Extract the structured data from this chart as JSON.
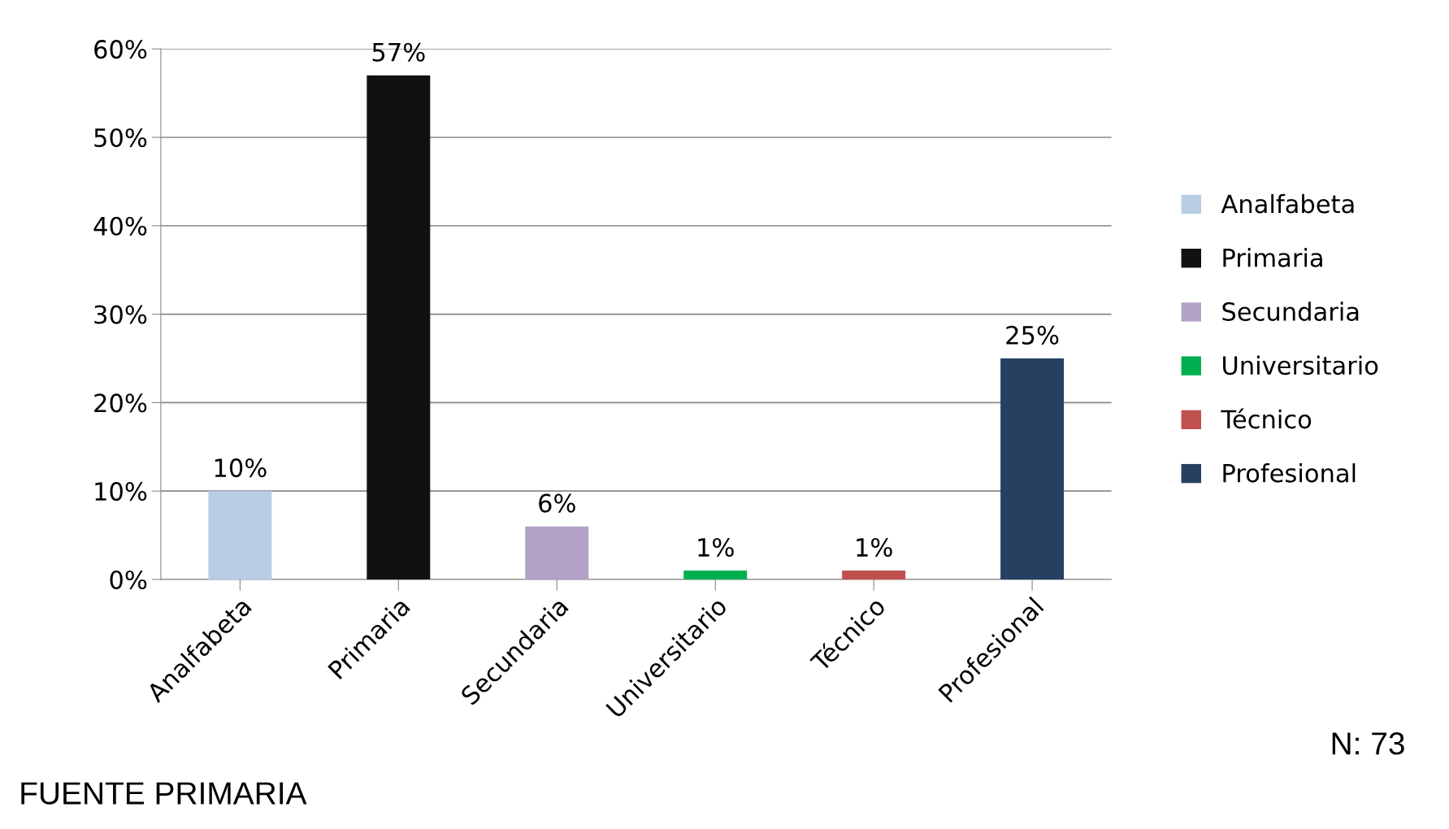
{
  "chart_data": {
    "type": "bar",
    "categories": [
      "Analfabeta",
      "Primaria",
      "Secundaria",
      "Universitario",
      "Técnico",
      "Profesional"
    ],
    "series": [
      {
        "name": "Analfabeta",
        "color": "#b9cde5",
        "values": [
          10,
          null,
          null,
          null,
          null,
          null
        ],
        "value_labels": [
          "10%",
          null,
          null,
          null,
          null,
          null
        ]
      },
      {
        "name": "Primaria",
        "color": "#111111",
        "values": [
          null,
          57,
          null,
          null,
          null,
          null
        ],
        "value_labels": [
          null,
          "57%",
          null,
          null,
          null,
          null
        ]
      },
      {
        "name": "Secundaria",
        "color": "#b3a2c7",
        "values": [
          null,
          null,
          6,
          null,
          null,
          null
        ],
        "value_labels": [
          null,
          null,
          "6%",
          null,
          null,
          null
        ]
      },
      {
        "name": "Universitario",
        "color": "#00b050",
        "values": [
          null,
          null,
          null,
          1,
          null,
          null
        ],
        "value_labels": [
          null,
          null,
          null,
          "1%",
          null,
          null
        ]
      },
      {
        "name": "Técnico",
        "color": "#c0504d",
        "values": [
          null,
          null,
          null,
          null,
          1,
          null
        ],
        "value_labels": [
          null,
          null,
          null,
          null,
          "1%",
          null
        ]
      },
      {
        "name": "Profesional",
        "color": "#254061",
        "values": [
          null,
          null,
          null,
          null,
          null,
          25
        ],
        "value_labels": [
          null,
          null,
          null,
          null,
          null,
          "25%"
        ]
      }
    ],
    "ylim": [
      0,
      60
    ],
    "yticks": [
      {
        "value": 0,
        "label": "0%"
      },
      {
        "value": 10,
        "label": "10%"
      },
      {
        "value": 20,
        "label": "20%"
      },
      {
        "value": 30,
        "label": "30%"
      },
      {
        "value": 40,
        "label": "40%"
      },
      {
        "value": 50,
        "label": "50%"
      },
      {
        "value": 60,
        "label": "60%"
      }
    ],
    "grid": "y",
    "legend": "right",
    "annotations": [
      "FUENTE PRIMARIA",
      "N: 73"
    ]
  }
}
